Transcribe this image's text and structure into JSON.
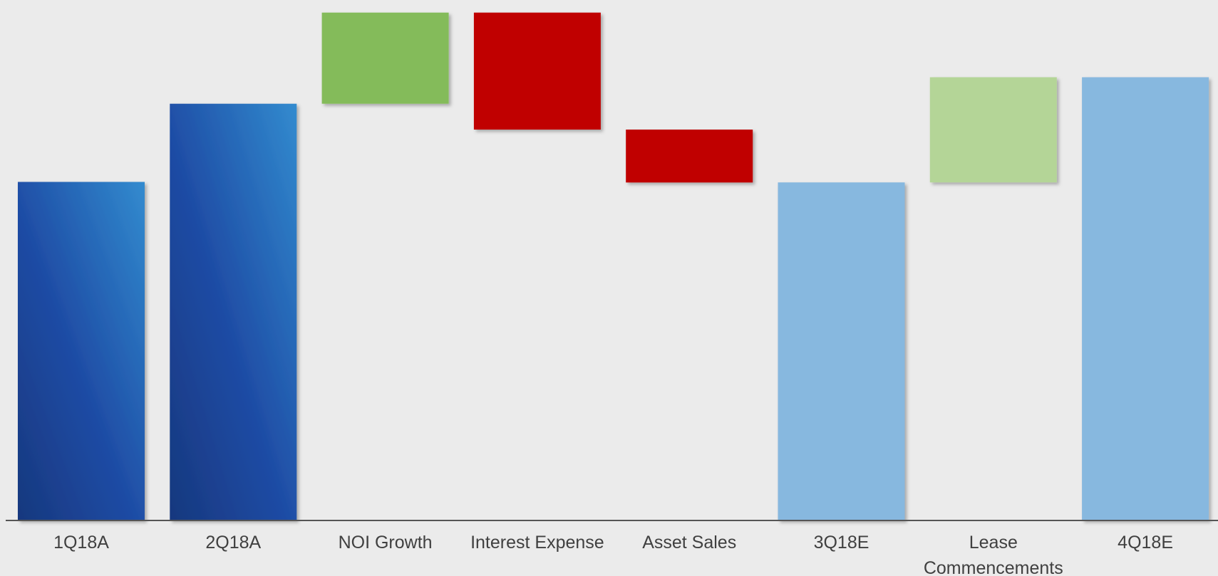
{
  "chart_data": {
    "type": "bar",
    "subtype": "waterfall",
    "title": "",
    "xlabel": "",
    "ylabel": "",
    "categories": [
      "1Q18A",
      "2Q18A",
      "NOI Growth",
      "Interest Expense",
      "Asset Sales",
      "3Q18E",
      "Lease Commencements",
      "4Q18E"
    ],
    "bars": [
      {
        "label": "1Q18A",
        "kind": "total",
        "start": 0,
        "end": 60.2,
        "color": "#1f4ea3",
        "gradient_end": "#3288cc"
      },
      {
        "label": "2Q18A",
        "kind": "total",
        "start": 0,
        "end": 74.1,
        "color": "#1f4ea3",
        "gradient_end": "#3288cc"
      },
      {
        "label": "NOI Growth",
        "kind": "increase",
        "start": 74.1,
        "end": 90.3,
        "color": "#84bb5a"
      },
      {
        "label": "Interest Expense",
        "kind": "decrease",
        "start": 90.3,
        "end": 69.5,
        "color": "#c00000"
      },
      {
        "label": "Asset Sales",
        "kind": "decrease",
        "start": 69.5,
        "end": 60.1,
        "color": "#c00000"
      },
      {
        "label": "3Q18E",
        "kind": "total",
        "start": 0,
        "end": 60.1,
        "color": "#87b8df"
      },
      {
        "label": "Lease Commencements",
        "kind": "increase",
        "start": 60.1,
        "end": 78.8,
        "color": "#b4d597"
      },
      {
        "label": "4Q18E",
        "kind": "total",
        "start": 0,
        "end": 78.8,
        "color": "#87b8df"
      }
    ],
    "ylim": [
      0,
      91.4
    ],
    "y_axis_visible": false,
    "grid": false,
    "legend": "none",
    "axis_color": "#555555",
    "label_color": "#404040",
    "background": "#ebebeb"
  }
}
